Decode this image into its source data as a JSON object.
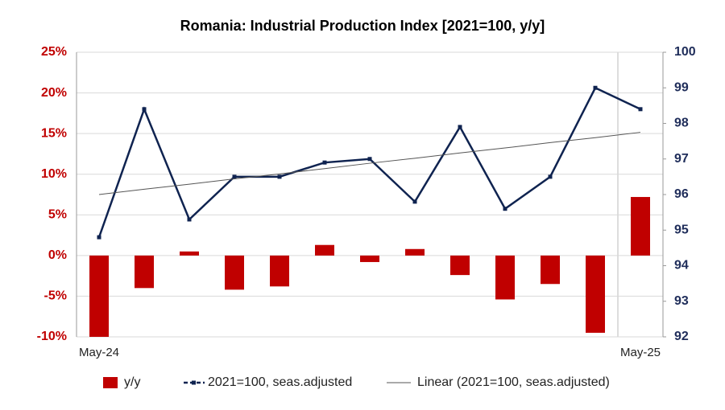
{
  "chart_data": {
    "type": "bar_line",
    "title": "Romania: Industrial Production Index [2021=100, y/y]",
    "categories": [
      "May-24",
      null,
      null,
      null,
      null,
      null,
      null,
      null,
      null,
      null,
      null,
      null,
      "May-25"
    ],
    "series": [
      {
        "name": "y/y",
        "color": "#c00000",
        "axis": "y",
        "type": "bar",
        "values": [
          -10,
          -4.0,
          0.5,
          -4.2,
          -3.8,
          1.3,
          -0.8,
          0.8,
          -2.4,
          -5.4,
          -3.5,
          -9.5,
          7.2
        ]
      },
      {
        "name": "2021=100, seas.adjusted",
        "color": "#0f2350",
        "axis": "y2",
        "type": "line",
        "values": [
          94.8,
          98.4,
          95.3,
          96.5,
          96.5,
          96.9,
          97.0,
          95.8,
          97.9,
          95.6,
          96.5,
          99.0,
          98.4
        ]
      },
      {
        "name": "Linear (2021=100, seas.adjusted)",
        "color": "#555555",
        "axis": "y2",
        "type": "trend",
        "values": [
          96.0,
          96.15,
          96.29,
          96.44,
          96.58,
          96.73,
          96.88,
          97.02,
          97.17,
          97.31,
          97.46,
          97.6,
          97.75
        ]
      }
    ],
    "ylim": [
      -10,
      25
    ],
    "yticks": [
      {
        "value": -10,
        "label": "-10%"
      },
      {
        "value": -5,
        "label": "-5%"
      },
      {
        "value": 0,
        "label": "0%"
      },
      {
        "value": 5,
        "label": "5%"
      },
      {
        "value": 10,
        "label": "10%"
      },
      {
        "value": 15,
        "label": "15%"
      },
      {
        "value": 20,
        "label": "20%"
      },
      {
        "value": 25,
        "label": "25%"
      }
    ],
    "y2lim": [
      92,
      100
    ],
    "y2ticks": [
      92,
      93,
      94,
      95,
      96,
      97,
      98,
      99,
      100
    ],
    "grid": true
  }
}
